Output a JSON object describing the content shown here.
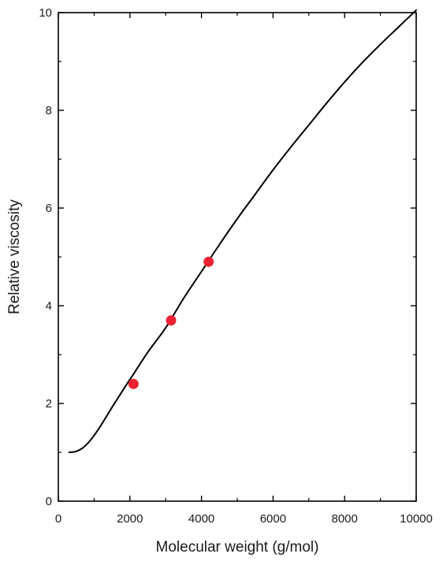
{
  "chart_data": {
    "type": "line",
    "title": "",
    "xlabel": "Molecular weight (g/mol)",
    "ylabel": "Relative viscosity",
    "xlim": [
      0,
      10000
    ],
    "ylim": [
      0,
      10
    ],
    "x_ticks": [
      0,
      2000,
      4000,
      6000,
      8000,
      10000
    ],
    "x_tick_labels": [
      "0",
      "2000",
      "4000",
      "6000",
      "8000",
      "10000"
    ],
    "y_ticks": [
      0,
      2,
      4,
      6,
      8,
      10
    ],
    "y_tick_labels": [
      "0",
      "2",
      "4",
      "6",
      "8",
      "10"
    ],
    "grid": false,
    "legend": "none",
    "series": [
      {
        "type": "line",
        "color": "#000000",
        "x": [
          300,
          500,
          700,
          900,
          1100,
          1300,
          1500,
          1700,
          1900,
          2100,
          2500,
          3000,
          3500,
          4000,
          4500,
          5000,
          5500,
          6000,
          6500,
          7000,
          7500,
          8000,
          8500,
          9000,
          9500,
          10000
        ],
        "y": [
          1.0,
          1.02,
          1.1,
          1.25,
          1.45,
          1.68,
          1.92,
          2.15,
          2.38,
          2.6,
          3.05,
          3.55,
          4.15,
          4.7,
          5.25,
          5.78,
          6.28,
          6.78,
          7.25,
          7.7,
          8.15,
          8.58,
          8.98,
          9.35,
          9.7,
          10.05
        ]
      },
      {
        "type": "scatter",
        "color": "#ee2233",
        "x": [
          2100,
          3150,
          4200
        ],
        "y": [
          2.4,
          3.7,
          4.9
        ]
      }
    ]
  }
}
